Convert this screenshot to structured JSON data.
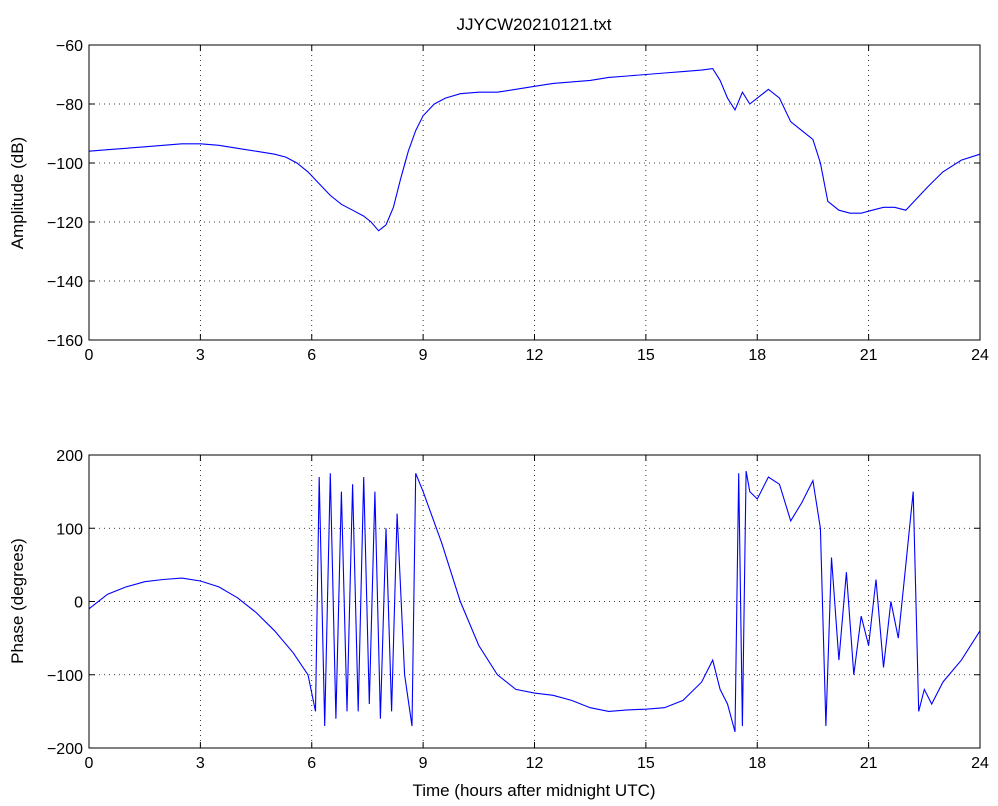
{
  "chart_data": [
    {
      "type": "line",
      "title": "JJYCW20210121.txt",
      "xlabel": "",
      "ylabel": "Amplitude (dB)",
      "xlim": [
        0,
        24
      ],
      "ylim": [
        -160,
        -60
      ],
      "xticks": [
        0,
        3,
        6,
        9,
        12,
        15,
        18,
        21,
        24
      ],
      "yticks": [
        -160,
        -140,
        -120,
        -100,
        -80,
        -60
      ],
      "ytick_labels": [
        "−160",
        "−140",
        "−120",
        "−100",
        "−80",
        "−60"
      ],
      "grid": true,
      "color": "#0000ff",
      "series": [
        {
          "x": [
            0,
            0.5,
            1,
            1.5,
            2,
            2.5,
            3,
            3.5,
            4,
            4.5,
            5,
            5.3,
            5.6,
            5.9,
            6.2,
            6.5,
            6.8,
            7.1,
            7.4,
            7.6,
            7.8,
            8.0,
            8.2,
            8.4,
            8.6,
            8.8,
            9.0,
            9.3,
            9.6,
            10,
            10.5,
            11,
            11.5,
            12,
            12.5,
            13,
            13.5,
            14,
            14.5,
            15,
            15.5,
            16,
            16.5,
            16.8,
            17.0,
            17.2,
            17.4,
            17.6,
            17.8,
            18.0,
            18.3,
            18.6,
            18.9,
            19.2,
            19.5,
            19.7,
            19.9,
            20.2,
            20.5,
            20.8,
            21.1,
            21.4,
            21.7,
            22.0,
            22.3,
            22.6,
            23,
            23.5,
            24
          ],
          "values": [
            -96,
            -95.5,
            -95,
            -94.5,
            -94,
            -93.5,
            -93.5,
            -94,
            -95,
            -96,
            -97,
            -98,
            -100,
            -103,
            -107,
            -111,
            -114,
            -116,
            -118,
            -120,
            -123,
            -121,
            -115,
            -105,
            -96,
            -89,
            -84,
            -80,
            -78,
            -76.5,
            -76,
            -76,
            -75,
            -74,
            -73,
            -72.5,
            -72,
            -71,
            -70.5,
            -70,
            -69.5,
            -69,
            -68.5,
            -68,
            -72,
            -78,
            -82,
            -76,
            -80,
            -78,
            -75,
            -78,
            -86,
            -89,
            -92,
            -100,
            -113,
            -116,
            -117,
            -117,
            -116,
            -115,
            -115,
            -116,
            -112,
            -108,
            -103,
            -99,
            -97
          ]
        }
      ]
    },
    {
      "type": "line",
      "title": "",
      "xlabel": "Time (hours after midnight UTC)",
      "ylabel": "Phase (degrees)",
      "xlim": [
        0,
        24
      ],
      "ylim": [
        -200,
        200
      ],
      "xticks": [
        0,
        3,
        6,
        9,
        12,
        15,
        18,
        21,
        24
      ],
      "yticks": [
        -200,
        -100,
        0,
        100,
        200
      ],
      "ytick_labels": [
        "−200",
        "−100",
        "0",
        "100",
        "200"
      ],
      "grid": true,
      "color": "#0000ff",
      "series": [
        {
          "x": [
            0,
            0.5,
            1,
            1.5,
            2,
            2.5,
            3,
            3.5,
            4,
            4.5,
            5,
            5.5,
            5.9,
            6.1,
            6.2,
            6.35,
            6.5,
            6.65,
            6.8,
            6.95,
            7.1,
            7.25,
            7.4,
            7.55,
            7.7,
            7.85,
            8.0,
            8.15,
            8.3,
            8.5,
            8.7,
            8.8,
            9.0,
            9.5,
            10,
            10.5,
            11,
            11.5,
            12,
            12.5,
            13,
            13.5,
            14,
            14.5,
            15,
            15.5,
            16,
            16.5,
            16.8,
            17.0,
            17.2,
            17.4,
            17.5,
            17.6,
            17.7,
            17.8,
            18.0,
            18.3,
            18.6,
            18.9,
            19.2,
            19.5,
            19.7,
            19.85,
            20.0,
            20.2,
            20.4,
            20.6,
            20.8,
            21.0,
            21.2,
            21.4,
            21.6,
            21.8,
            22.0,
            22.2,
            22.35,
            22.5,
            22.7,
            23,
            23.5,
            24
          ],
          "values": [
            -10,
            10,
            20,
            27,
            30,
            32,
            28,
            20,
            5,
            -15,
            -40,
            -70,
            -100,
            -150,
            170,
            -170,
            175,
            -160,
            150,
            -150,
            160,
            -150,
            170,
            -140,
            150,
            -160,
            100,
            -150,
            120,
            -100,
            -170,
            175,
            150,
            80,
            0,
            -60,
            -100,
            -120,
            -125,
            -128,
            -135,
            -145,
            -150,
            -148,
            -147,
            -145,
            -135,
            -110,
            -80,
            -120,
            -140,
            -178,
            175,
            -170,
            178,
            150,
            140,
            170,
            160,
            110,
            135,
            165,
            100,
            -170,
            60,
            -80,
            40,
            -100,
            -20,
            -60,
            30,
            -90,
            0,
            -50,
            50,
            150,
            -150,
            -120,
            -140,
            -110,
            -80,
            -40
          ]
        }
      ]
    }
  ]
}
